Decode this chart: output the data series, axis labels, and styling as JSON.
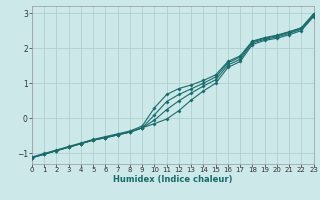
{
  "xlabel": "Humidex (Indice chaleur)",
  "bg_color": "#cce8e8",
  "line_color": "#1a6b6b",
  "grid_color": "#aacccc",
  "xlim": [
    0,
    23
  ],
  "ylim": [
    -1.3,
    3.2
  ],
  "xticks": [
    0,
    1,
    2,
    3,
    4,
    5,
    6,
    7,
    8,
    9,
    10,
    11,
    12,
    13,
    14,
    15,
    16,
    17,
    18,
    19,
    20,
    21,
    22,
    23
  ],
  "yticks": [
    -1,
    0,
    1,
    2,
    3
  ],
  "lines": [
    {
      "x": [
        0,
        1,
        2,
        3,
        4,
        5,
        6,
        7,
        8,
        9,
        10,
        11,
        12,
        13,
        14,
        15,
        16,
        17,
        18,
        19,
        20,
        21,
        22,
        23
      ],
      "y": [
        -1.12,
        -1.02,
        -0.92,
        -0.82,
        -0.72,
        -0.62,
        -0.55,
        -0.47,
        -0.39,
        -0.27,
        -0.15,
        -0.02,
        0.22,
        0.52,
        0.78,
        1.0,
        1.45,
        1.62,
        2.1,
        2.22,
        2.28,
        2.38,
        2.5,
        2.9
      ]
    },
    {
      "x": [
        0,
        1,
        2,
        3,
        4,
        5,
        6,
        7,
        8,
        9,
        10,
        11,
        12,
        13,
        14,
        15,
        16,
        17,
        18,
        19,
        20,
        21,
        22,
        23
      ],
      "y": [
        -1.12,
        -1.02,
        -0.92,
        -0.82,
        -0.72,
        -0.62,
        -0.55,
        -0.47,
        -0.39,
        -0.27,
        -0.05,
        0.25,
        0.5,
        0.72,
        0.92,
        1.1,
        1.52,
        1.68,
        2.15,
        2.25,
        2.32,
        2.42,
        2.54,
        2.93
      ]
    },
    {
      "x": [
        0,
        1,
        2,
        3,
        4,
        5,
        6,
        7,
        8,
        9,
        10,
        11,
        12,
        13,
        14,
        15,
        16,
        17,
        18,
        19,
        20,
        21,
        22,
        23
      ],
      "y": [
        -1.12,
        -1.02,
        -0.92,
        -0.82,
        -0.72,
        -0.62,
        -0.55,
        -0.47,
        -0.39,
        -0.27,
        0.1,
        0.48,
        0.68,
        0.84,
        1.0,
        1.18,
        1.58,
        1.74,
        2.18,
        2.28,
        2.35,
        2.45,
        2.57,
        2.96
      ]
    },
    {
      "x": [
        0,
        1,
        2,
        3,
        4,
        5,
        6,
        7,
        8,
        9,
        10,
        11,
        12,
        13,
        14,
        15,
        16,
        17,
        18,
        19,
        20,
        21,
        22,
        23
      ],
      "y": [
        -1.1,
        -1.0,
        -0.9,
        -0.8,
        -0.7,
        -0.6,
        -0.52,
        -0.44,
        -0.36,
        -0.22,
        0.3,
        0.68,
        0.85,
        0.95,
        1.08,
        1.24,
        1.62,
        1.78,
        2.2,
        2.3,
        2.37,
        2.47,
        2.58,
        2.98
      ]
    }
  ]
}
